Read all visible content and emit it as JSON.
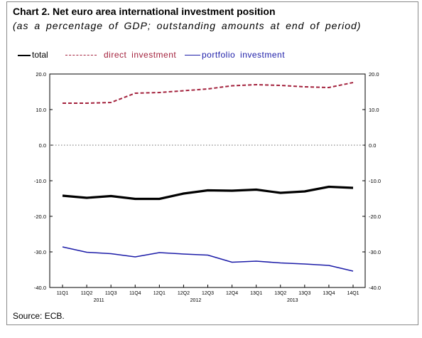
{
  "title": "Chart 2. Net euro area international investment position",
  "subtitle": "(as a percentage of GDP; outstanding amounts at end of period)",
  "source": "Source: ECB.",
  "colors": {
    "total": "#000000",
    "direct_investment": "#a3213c",
    "portfolio_investment": "#1c1ca8",
    "zero_line": "#6e6e6e"
  },
  "chart_data": {
    "type": "line",
    "categories": [
      "11Q1",
      "11Q2",
      "11Q3",
      "11Q4",
      "12Q1",
      "12Q2",
      "12Q3",
      "12Q4",
      "13Q1",
      "13Q2",
      "13Q3",
      "13Q4",
      "14Q1"
    ],
    "year_labels": [
      "2011",
      "2012",
      "2013"
    ],
    "ylim": [
      -40,
      20
    ],
    "yticks": [
      "20.0",
      "10.0",
      "0.0",
      "-10.0",
      "-20.0",
      "-30.0",
      "-40.0"
    ],
    "grid": false,
    "zero_line": "dotted",
    "legend_position": "top",
    "series": [
      {
        "key": "total",
        "name": "total",
        "style": "solid-thick",
        "values": [
          -14.2,
          -14.8,
          -14.3,
          -15.1,
          -15.1,
          -13.6,
          -12.7,
          -12.8,
          -12.5,
          -13.4,
          -13.0,
          -11.7,
          -12.0
        ]
      },
      {
        "key": "direct_investment",
        "name": "direct investment",
        "style": "dashed",
        "values": [
          11.8,
          11.8,
          12.0,
          14.6,
          14.8,
          15.3,
          15.8,
          16.7,
          17.0,
          16.8,
          16.4,
          16.2,
          17.6
        ]
      },
      {
        "key": "portfolio_investment",
        "name": "portfolio investment",
        "style": "solid-thin",
        "values": [
          -28.6,
          -30.1,
          -30.5,
          -31.4,
          -30.2,
          -30.6,
          -30.9,
          -32.9,
          -32.6,
          -33.1,
          -33.4,
          -33.8,
          -35.4
        ]
      }
    ]
  }
}
